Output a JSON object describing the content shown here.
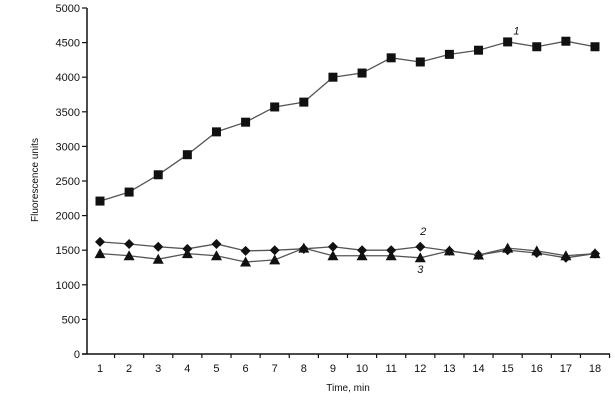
{
  "chart_data": {
    "type": "line",
    "title": "",
    "xlabel": "Time, min",
    "ylabel": "Fluorescence units",
    "x": [
      1,
      2,
      3,
      4,
      5,
      6,
      7,
      8,
      9,
      10,
      11,
      12,
      13,
      14,
      15,
      16,
      17,
      18
    ],
    "xlim": [
      1,
      18
    ],
    "ylim": [
      0,
      5000
    ],
    "yticks": [
      0,
      500,
      1000,
      1500,
      2000,
      2500,
      3000,
      3500,
      4000,
      4500,
      5000
    ],
    "xticks": [
      1,
      2,
      3,
      4,
      5,
      6,
      7,
      8,
      9,
      10,
      11,
      12,
      13,
      14,
      15,
      16,
      17,
      18
    ],
    "grid": false,
    "legend": "none (inline italic numeric labels)",
    "series": [
      {
        "name": "1",
        "marker": "square",
        "label_pos": {
          "x": 15.3,
          "y": 4620
        },
        "values": [
          2210,
          2340,
          2590,
          2880,
          3210,
          3350,
          3570,
          3640,
          4000,
          4060,
          4280,
          4220,
          4330,
          4390,
          4510,
          4440,
          4520,
          4440
        ]
      },
      {
        "name": "2",
        "marker": "diamond",
        "label_pos": {
          "x": 12.1,
          "y": 1720
        },
        "values": [
          1620,
          1590,
          1550,
          1520,
          1590,
          1490,
          1500,
          1520,
          1550,
          1500,
          1500,
          1550,
          1490,
          1430,
          1500,
          1460,
          1390,
          1450
        ]
      },
      {
        "name": "3",
        "marker": "triangle",
        "label_pos": {
          "x": 12.0,
          "y": 1170
        },
        "values": [
          1450,
          1420,
          1370,
          1450,
          1420,
          1330,
          1360,
          1530,
          1420,
          1420,
          1420,
          1390,
          1490,
          1430,
          1530,
          1490,
          1420,
          1450
        ]
      }
    ]
  },
  "axes": {
    "xlabel": "Time, min",
    "ylabel": "Fluorescence units"
  },
  "colors": {
    "line": "#555555",
    "marker": "#111111",
    "axis": "#111111"
  }
}
